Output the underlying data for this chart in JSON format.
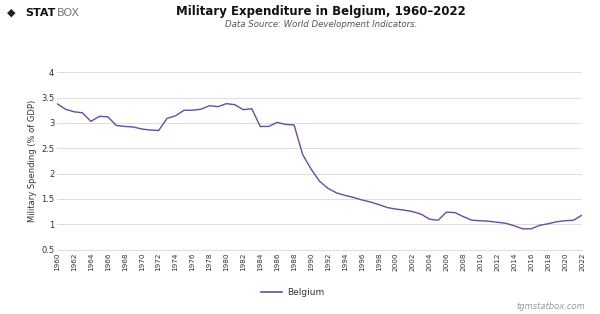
{
  "title": "Military Expenditure in Belgium, 1960–2022",
  "subtitle": "Data Source: World Development Indicators.",
  "ylabel": "Military Spending (% of GDP)",
  "line_color": "#6a4c9c",
  "background_color": "#ffffff",
  "grid_color": "#d0d0d0",
  "legend_label": "— Belgium",
  "watermark": "tgmstatbox.com",
  "ylim": [
    0.5,
    4.0
  ],
  "yticks": [
    0.5,
    1.0,
    1.5,
    2.0,
    2.5,
    3.0,
    3.5,
    4.0
  ],
  "years": [
    1960,
    1961,
    1962,
    1963,
    1964,
    1965,
    1966,
    1967,
    1968,
    1969,
    1970,
    1971,
    1972,
    1973,
    1974,
    1975,
    1976,
    1977,
    1978,
    1979,
    1980,
    1981,
    1982,
    1983,
    1984,
    1985,
    1986,
    1987,
    1988,
    1989,
    1990,
    1991,
    1992,
    1993,
    1994,
    1995,
    1996,
    1997,
    1998,
    1999,
    2000,
    2001,
    2002,
    2003,
    2004,
    2005,
    2006,
    2007,
    2008,
    2009,
    2010,
    2011,
    2012,
    2013,
    2014,
    2015,
    2016,
    2017,
    2018,
    2019,
    2020,
    2021,
    2022
  ],
  "values": [
    3.38,
    3.27,
    3.22,
    3.2,
    3.03,
    3.13,
    3.12,
    2.95,
    2.93,
    2.92,
    2.88,
    2.86,
    2.85,
    3.09,
    3.14,
    3.25,
    3.25,
    3.27,
    3.34,
    3.32,
    3.38,
    3.36,
    3.26,
    3.28,
    2.93,
    2.93,
    3.01,
    2.97,
    2.96,
    2.38,
    2.09,
    1.85,
    1.71,
    1.62,
    1.57,
    1.53,
    1.48,
    1.44,
    1.39,
    1.33,
    1.3,
    1.28,
    1.25,
    1.2,
    1.1,
    1.08,
    1.24,
    1.23,
    1.15,
    1.08,
    1.07,
    1.06,
    1.04,
    1.02,
    0.97,
    0.91,
    0.91,
    0.98,
    1.01,
    1.05,
    1.07,
    1.08,
    1.18
  ]
}
